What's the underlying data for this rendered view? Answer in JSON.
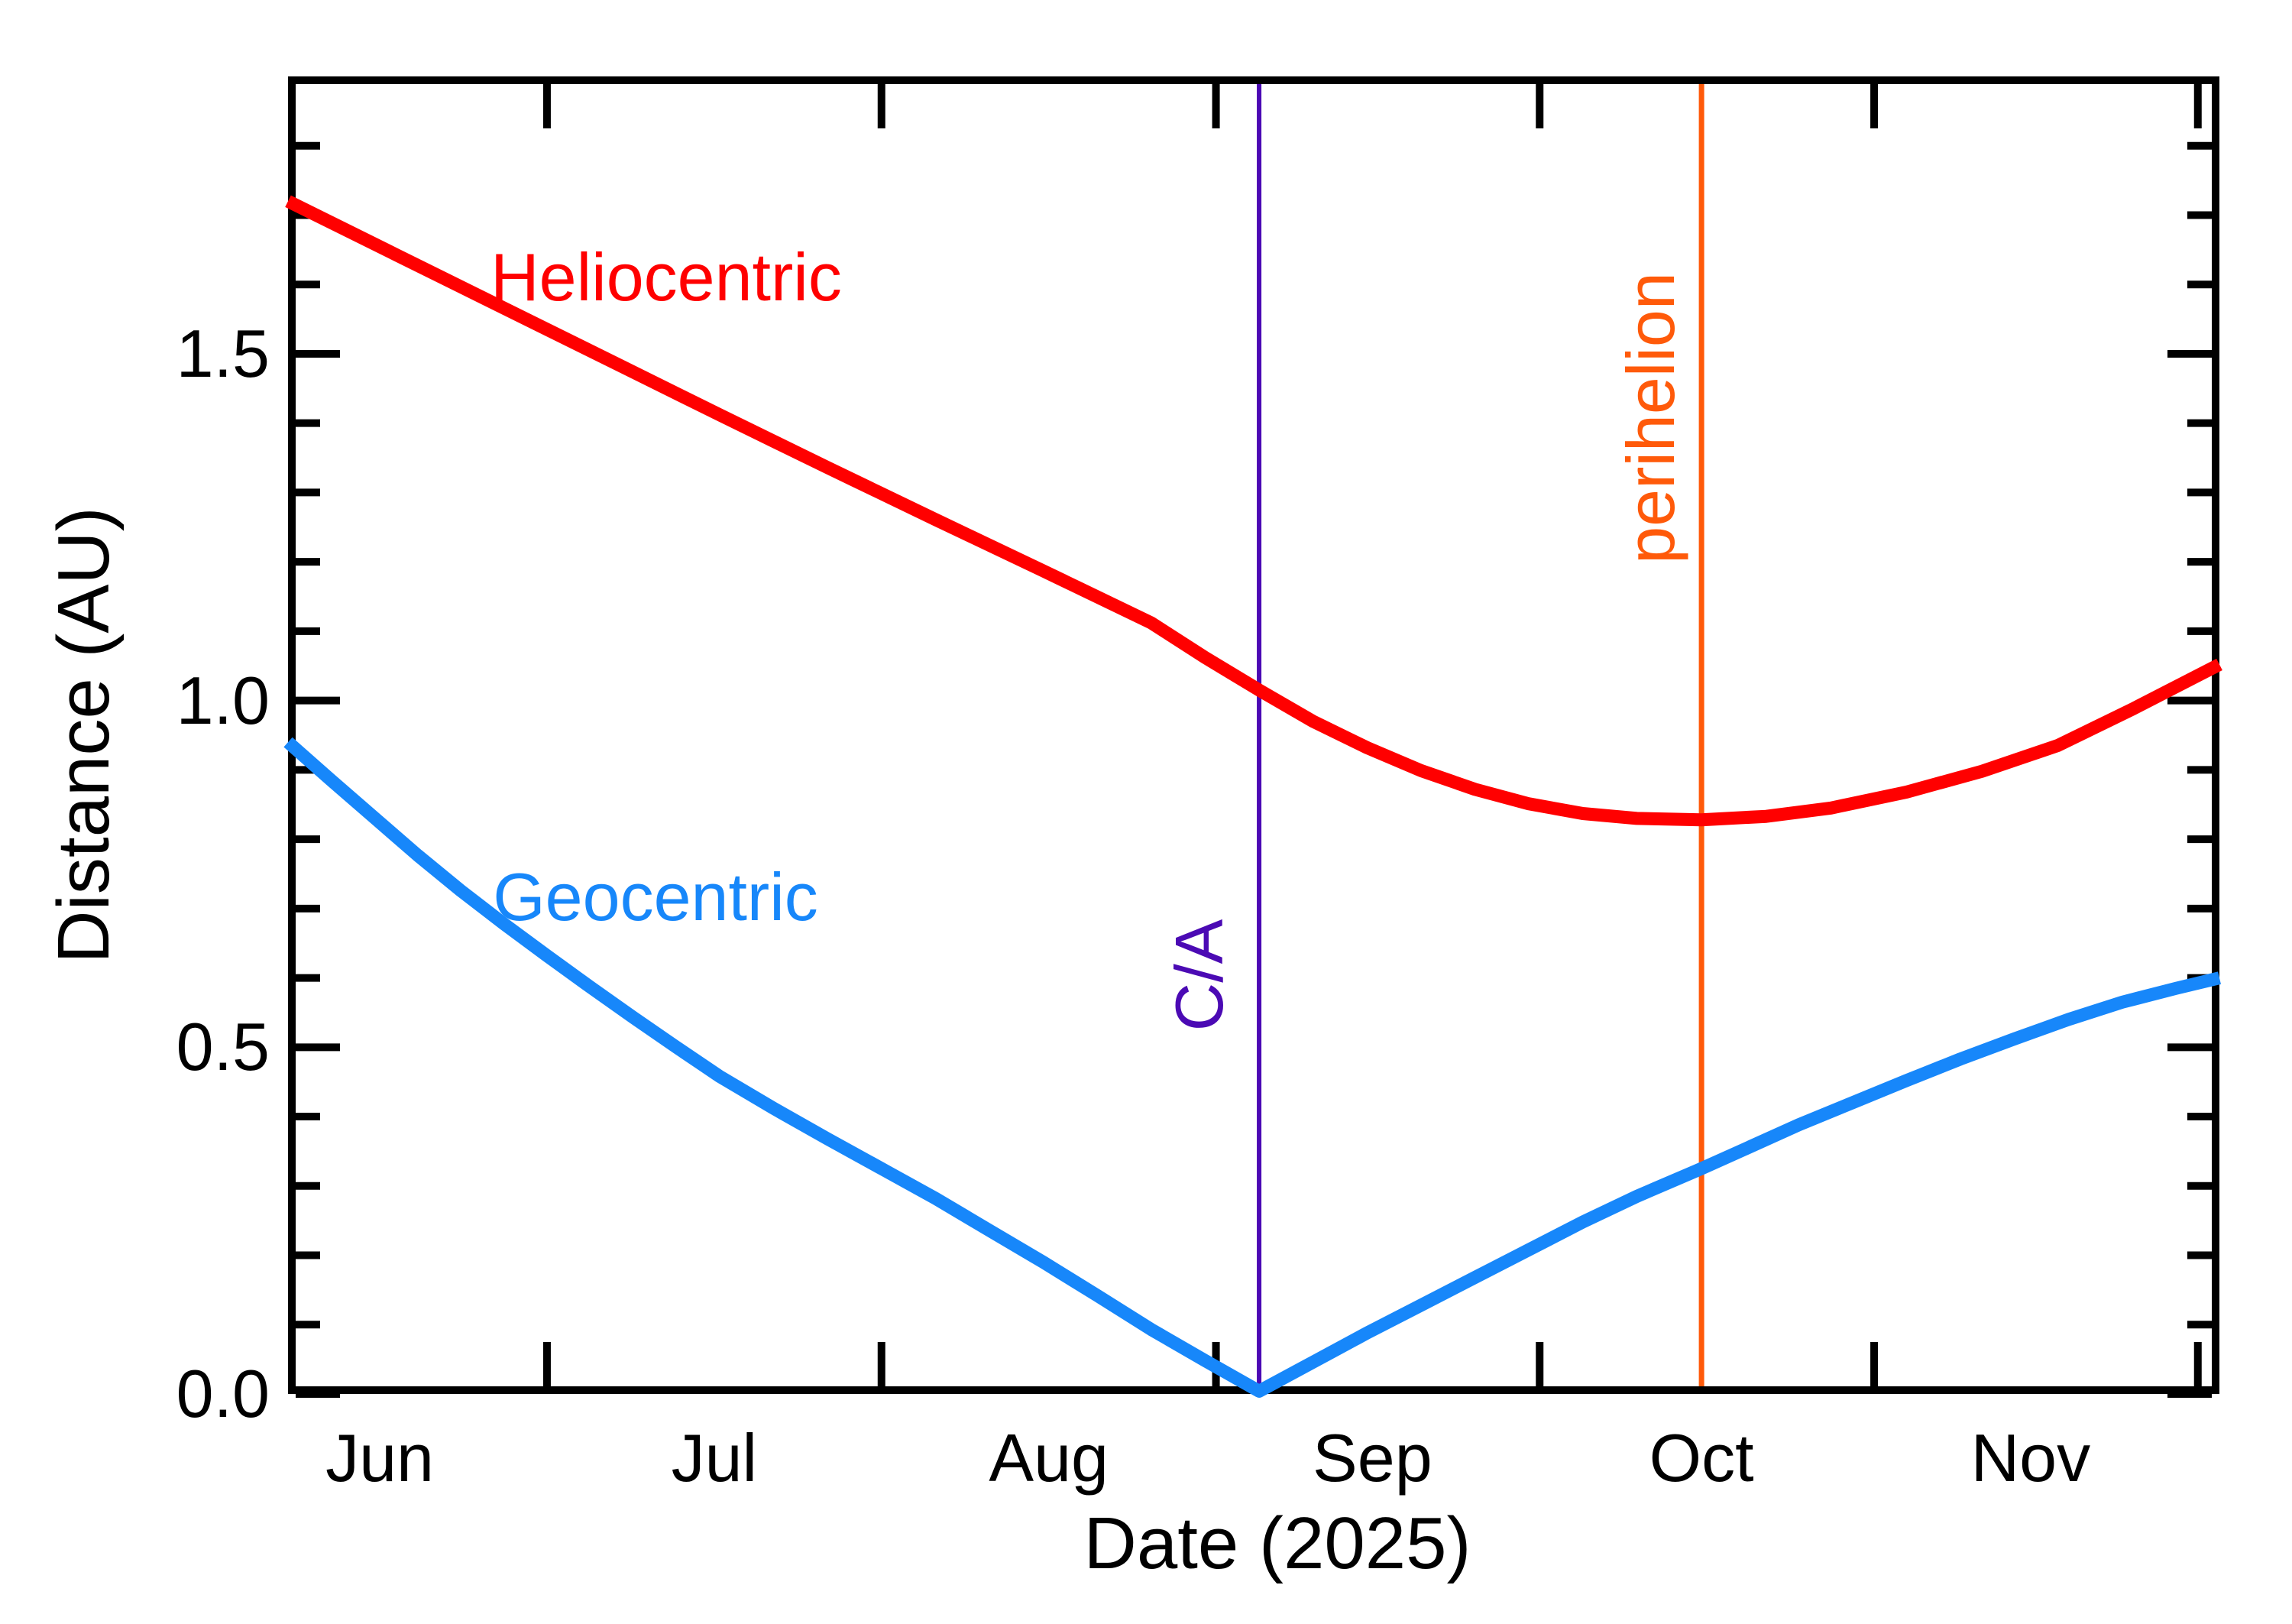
{
  "chart_data": {
    "type": "line",
    "title": "",
    "xlabel": "Date (2025)",
    "ylabel": "Distance (AU)",
    "x_unit": "days from left edge of plot (left edge ≈ 2025-Jun-07, right edge ≈ 2025-Dec-03)",
    "x_total_days": 179,
    "ylim": [
      0.0,
      1.9
    ],
    "grid": "off",
    "background_color": "#ffffff",
    "axis_color": "#000000",
    "y_major_ticks": [
      {
        "value": 0.0,
        "label": "0.0"
      },
      {
        "value": 0.5,
        "label": "0.5"
      },
      {
        "value": 1.0,
        "label": "1.0"
      },
      {
        "value": 1.5,
        "label": "1.5"
      }
    ],
    "y_minor_tick_step": 0.1,
    "x_month_ticks": [
      {
        "day": 24,
        "boundary": "Jul 1"
      },
      {
        "day": 55,
        "boundary": "Aug 1"
      },
      {
        "day": 86,
        "boundary": "Sep 1"
      },
      {
        "day": 116,
        "boundary": "Oct 1"
      },
      {
        "day": 147,
        "boundary": "Nov 1"
      },
      {
        "day": 177,
        "boundary": "Dec 1"
      }
    ],
    "x_month_labels": [
      {
        "day": 8.5,
        "label": "Jun"
      },
      {
        "day": 39.5,
        "label": "Jul"
      },
      {
        "day": 70.5,
        "label": "Aug"
      },
      {
        "day": 100.5,
        "label": "Sep"
      },
      {
        "day": 131,
        "label": "Oct"
      },
      {
        "day": 161.5,
        "label": "Nov"
      }
    ],
    "series": [
      {
        "name": "Heliocentric",
        "color": "#ff0000",
        "points": [
          [
            0,
            1.72
          ],
          [
            10,
            1.643
          ],
          [
            20,
            1.566
          ],
          [
            30,
            1.489
          ],
          [
            40,
            1.412
          ],
          [
            50,
            1.336
          ],
          [
            60,
            1.261
          ],
          [
            70,
            1.187
          ],
          [
            80,
            1.112
          ],
          [
            85,
            1.062
          ],
          [
            90,
            1.015
          ],
          [
            95,
            0.97
          ],
          [
            100,
            0.932
          ],
          [
            105,
            0.899
          ],
          [
            110,
            0.872
          ],
          [
            115,
            0.851
          ],
          [
            120,
            0.837
          ],
          [
            125,
            0.83
          ],
          [
            131,
            0.828
          ],
          [
            137,
            0.833
          ],
          [
            143,
            0.845
          ],
          [
            150,
            0.868
          ],
          [
            157,
            0.898
          ],
          [
            164,
            0.935
          ],
          [
            171,
            0.988
          ],
          [
            179,
            1.052
          ]
        ]
      },
      {
        "name": "Geocentric",
        "color": "#1787fa",
        "points": [
          [
            0,
            0.94
          ],
          [
            4,
            0.885
          ],
          [
            8,
            0.831
          ],
          [
            12,
            0.777
          ],
          [
            16,
            0.726
          ],
          [
            20,
            0.678
          ],
          [
            24,
            0.632
          ],
          [
            28,
            0.587
          ],
          [
            32,
            0.543
          ],
          [
            36,
            0.5
          ],
          [
            40,
            0.458
          ],
          [
            45,
            0.412
          ],
          [
            50,
            0.368
          ],
          [
            55,
            0.325
          ],
          [
            60,
            0.282
          ],
          [
            65,
            0.236
          ],
          [
            70,
            0.19
          ],
          [
            75,
            0.142
          ],
          [
            80,
            0.093
          ],
          [
            85,
            0.048
          ],
          [
            90,
            0.004
          ],
          [
            95,
            0.046
          ],
          [
            100,
            0.088
          ],
          [
            105,
            0.128
          ],
          [
            110,
            0.168
          ],
          [
            115,
            0.208
          ],
          [
            120,
            0.248
          ],
          [
            125,
            0.285
          ],
          [
            131,
            0.325
          ],
          [
            135,
            0.353
          ],
          [
            140,
            0.388
          ],
          [
            145,
            0.42
          ],
          [
            150,
            0.452
          ],
          [
            155,
            0.483
          ],
          [
            160,
            0.512
          ],
          [
            165,
            0.54
          ],
          [
            170,
            0.565
          ],
          [
            175,
            0.585
          ],
          [
            179,
            0.6
          ]
        ]
      }
    ],
    "annotations": [
      {
        "label": "C/A",
        "day": 90,
        "approx_date": "2025-Sep-05",
        "color": "#4b0ab4",
        "line_width": 6
      },
      {
        "label": "perihelion",
        "day": 131,
        "approx_date": "2025-Oct-16",
        "color": "#ff5a0a",
        "line_width": 7
      }
    ]
  }
}
